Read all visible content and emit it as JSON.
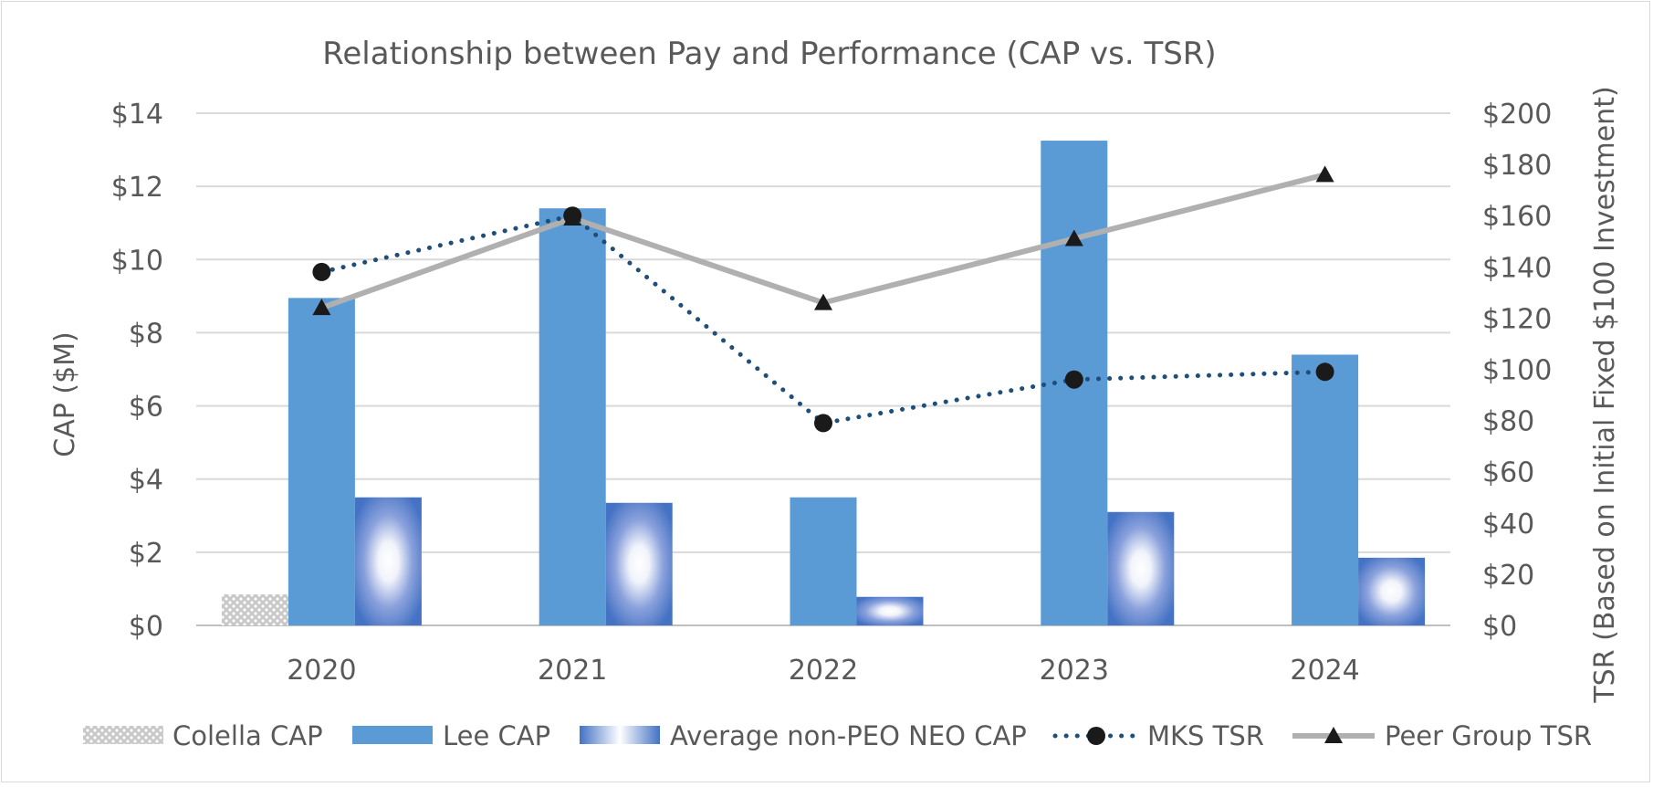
{
  "chart_data": {
    "type": "bar",
    "title": "Relationship between Pay and Performance (CAP vs. TSR)",
    "categories": [
      "2020",
      "2021",
      "2022",
      "2023",
      "2024"
    ],
    "ylabel": "CAP ($M)",
    "y2label": "TSR (Based on Initial Fixed $100 Investment)",
    "ylim": [
      0,
      14
    ],
    "y2lim": [
      0,
      200
    ],
    "yticks": [
      "$0",
      "$2",
      "$4",
      "$6",
      "$8",
      "$10",
      "$12",
      "$14"
    ],
    "y2ticks": [
      "$0",
      "$20",
      "$40",
      "$60",
      "$80",
      "$100",
      "$120",
      "$140",
      "$160",
      "$180",
      "$200"
    ],
    "grid": true,
    "legend_position": "bottom",
    "series": [
      {
        "name": "Colella CAP",
        "type": "bar",
        "axis": "left",
        "values": [
          0.85,
          0,
          0,
          0,
          0
        ],
        "color": "#b3b3b3",
        "style": "dotted-pattern"
      },
      {
        "name": "Lee CAP",
        "type": "bar",
        "axis": "left",
        "values": [
          8.95,
          11.4,
          3.5,
          13.25,
          7.4
        ],
        "color": "#5b9bd5",
        "style": "solid"
      },
      {
        "name": "Average non-PEO NEO CAP",
        "type": "bar",
        "axis": "left",
        "values": [
          3.5,
          3.35,
          0.78,
          3.1,
          1.85
        ],
        "color": "#4472c4",
        "style": "radial-gradient"
      },
      {
        "name": "MKS TSR",
        "type": "line",
        "axis": "right",
        "values": [
          138,
          160,
          79,
          96,
          99
        ],
        "color": "#1f4e79",
        "style": "dotted",
        "marker": "circle"
      },
      {
        "name": "Peer Group TSR",
        "type": "line",
        "axis": "right",
        "values": [
          124,
          159,
          126,
          151,
          176
        ],
        "color": "#b0b0b0",
        "style": "solid",
        "marker": "triangle"
      }
    ]
  }
}
